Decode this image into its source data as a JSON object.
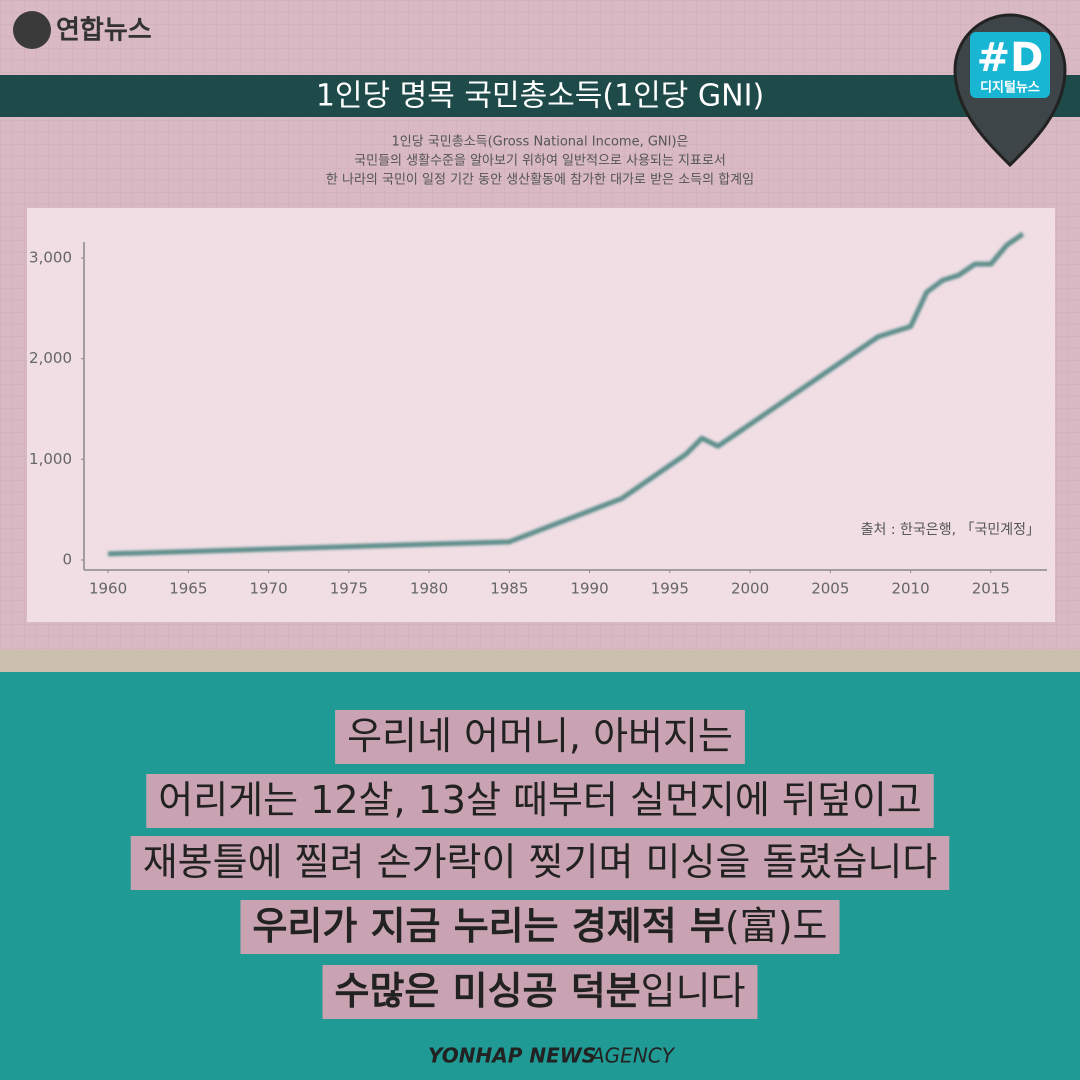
{
  "header": {
    "logo": "연합뉴스",
    "badge_tag": "#D",
    "badge_label": "디지털뉴스"
  },
  "chart_data": {
    "type": "line",
    "title": "1인당 명목 국민총소득(1인당 GNI)",
    "description": [
      "1인당 국민총소득(Gross National Income, GNI)은",
      "국민들의 생활수준을 알아보기 위하여 일반적으로 사용되는 지표로서",
      "한 나라의 국민이 일정 기간 동안 생산활동에 참가한 대가로 받은 소득의 합계임"
    ],
    "source": "출처 : 한국은행, 「국민계정」",
    "x": [
      1960,
      1985,
      1992,
      1996,
      1997,
      1998,
      2008,
      2010,
      2011,
      2012,
      2013,
      2014,
      2015,
      2016,
      2017
    ],
    "series": [
      {
        "color": "#5e8f8c",
        "values": [
          60,
          180,
          610,
          1050,
          1210,
          1130,
          2220,
          2320,
          2660,
          2780,
          2830,
          2940,
          2940,
          3130,
          3240
        ]
      }
    ],
    "xlim": [
      1958.5,
      2018.5
    ],
    "xticks": [
      1960,
      1965,
      1970,
      1975,
      1980,
      1985,
      1990,
      1995,
      2000,
      2005,
      2010,
      2015
    ],
    "ylim": [
      -100,
      3160
    ],
    "yticks": [
      0,
      {
        "value": 1000,
        "label": "1,000"
      },
      {
        "value": 2000,
        "label": "2,000"
      },
      {
        "value": 3000,
        "label": "3,000"
      }
    ]
  },
  "caption": {
    "lines": [
      [
        {
          "text": "우리네 어머니, 아버지는",
          "bold": false
        }
      ],
      [
        {
          "text": "어리게는 12살, 13살 때부터 실먼지에 뒤덮이고",
          "bold": false
        }
      ],
      [
        {
          "text": "재봉틀에 찔려 손가락이 찢기며 미싱을 돌렸습니다",
          "bold": false
        }
      ],
      [
        {
          "text": "우리가 지금 누리는 경제적 부",
          "bold": true
        },
        {
          "text": "(富)도",
          "bold": false
        }
      ],
      [
        {
          "text": "수많은 미싱공 덕분",
          "bold": true
        },
        {
          "text": "입니다",
          "bold": false
        }
      ]
    ]
  },
  "footer": {
    "brand": "YONHAP NEWS",
    "suffix": "AGENCY"
  }
}
